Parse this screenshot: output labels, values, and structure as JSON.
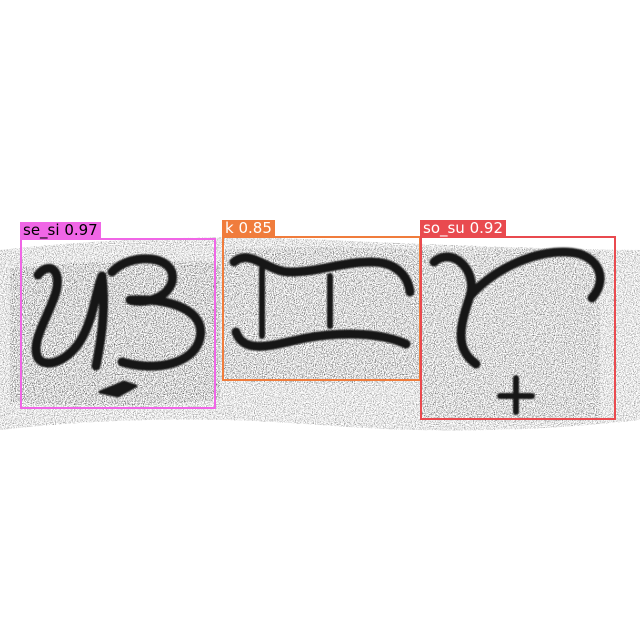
{
  "image": {
    "subject": "scanned handwritten script glyphs with object-detection boxes",
    "background": "#ffffff"
  },
  "detections": [
    {
      "label": "se_si",
      "score": "0.97",
      "color": "#f066e6"
    },
    {
      "label": "k",
      "score": "0.85",
      "color": "#f07c3c"
    },
    {
      "label": "so_su",
      "score": "0.92",
      "color": "#e94a4f"
    }
  ]
}
